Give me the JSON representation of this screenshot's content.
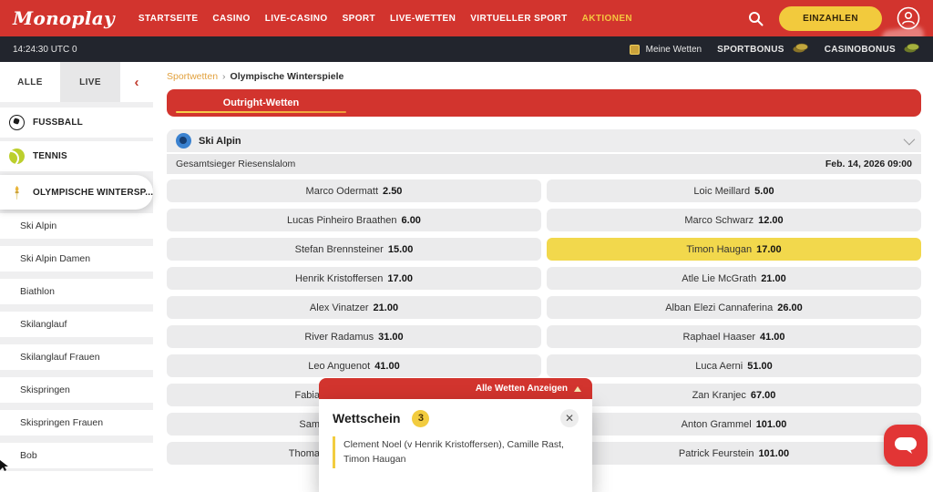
{
  "header": {
    "logo": "Monoplay",
    "nav": [
      "STARTSEITE",
      "CASINO",
      "LIVE-CASINO",
      "SPORT",
      "LIVE-WETTEN",
      "VIRTUELLER SPORT",
      "AKTIONEN"
    ],
    "nav_active": "AKTIONEN",
    "deposit_label": "EINZAHLEN"
  },
  "statusbar": {
    "time": "14:24:30 UTC 0",
    "my_bets": "Meine Wetten",
    "sportbonus": "SPORTBONUS",
    "casinobonus": "CASINOBONUS"
  },
  "sidebar": {
    "tab_all": "ALLE",
    "tab_live": "LIVE",
    "sports": [
      {
        "label": "FUSSBALL",
        "icon": "soccer-ball-icon",
        "selected": false
      },
      {
        "label": "TENNIS",
        "icon": "tennis-ball-icon",
        "selected": false
      },
      {
        "label": "OLYMPISCHE WINTERSP...",
        "icon": "olympic-torch-icon",
        "selected": true
      }
    ],
    "subitems": [
      "Ski Alpin",
      "Ski Alpin Damen",
      "Biathlon",
      "Skilanglauf",
      "Skilanglauf Frauen",
      "Skispringen",
      "Skispringen Frauen",
      "Bob"
    ]
  },
  "main": {
    "breadcrumb": {
      "parent": "Sportwetten",
      "current": "Olympische Winterspiele"
    },
    "tab": "Outright-Wetten",
    "section_title": "Ski Alpin",
    "market": {
      "name": "Gesamtsieger Riesenslalom",
      "date": "Feb. 14, 2026 09:00"
    },
    "odds": [
      [
        {
          "name": "Marco Odermatt",
          "odds": "2.50"
        },
        {
          "name": "Loic Meillard",
          "odds": "5.00"
        }
      ],
      [
        {
          "name": "Lucas Pinheiro Braathen",
          "odds": "6.00"
        },
        {
          "name": "Marco Schwarz",
          "odds": "12.00"
        }
      ],
      [
        {
          "name": "Stefan Brennsteiner",
          "odds": "15.00"
        },
        {
          "name": "Timon Haugan",
          "odds": "17.00",
          "selected": true
        }
      ],
      [
        {
          "name": "Henrik Kristoffersen",
          "odds": "17.00"
        },
        {
          "name": "Atle Lie McGrath",
          "odds": "21.00"
        }
      ],
      [
        {
          "name": "Alex Vinatzer",
          "odds": "21.00"
        },
        {
          "name": "Alban Elezi Cannaferina",
          "odds": "26.00"
        }
      ],
      [
        {
          "name": "River Radamus",
          "odds": "31.00"
        },
        {
          "name": "Raphael Haaser",
          "odds": "41.00"
        }
      ],
      [
        {
          "name": "Leo Anguenot",
          "odds": "41.00"
        },
        {
          "name": "Luca Aerni",
          "odds": "51.00"
        }
      ],
      [
        {
          "name": "Fabia",
          "odds": "",
          "covered": true
        },
        {
          "name": "Zan Kranjec",
          "odds": "67.00"
        }
      ],
      [
        {
          "name": "Sam",
          "odds": "",
          "covered": true
        },
        {
          "name": "Anton Grammel",
          "odds": "101.00"
        }
      ],
      [
        {
          "name": "Thoma",
          "odds": "",
          "covered": true
        },
        {
          "name": "Patrick Feurstein",
          "odds": "101.00"
        }
      ]
    ]
  },
  "betslip": {
    "show_all": "Alle Wetten Anzeigen",
    "title": "Wettschein",
    "count": "3",
    "selections": "Clement Noel (v Henrik Kristoffersen), Camille Rast, Timon Haugan"
  },
  "colors": {
    "brand_red": "#d2342e",
    "accent_yellow": "#f2ca3d",
    "selected_odd_yellow": "#f2d84c",
    "statusbar_dark": "#22252d"
  }
}
